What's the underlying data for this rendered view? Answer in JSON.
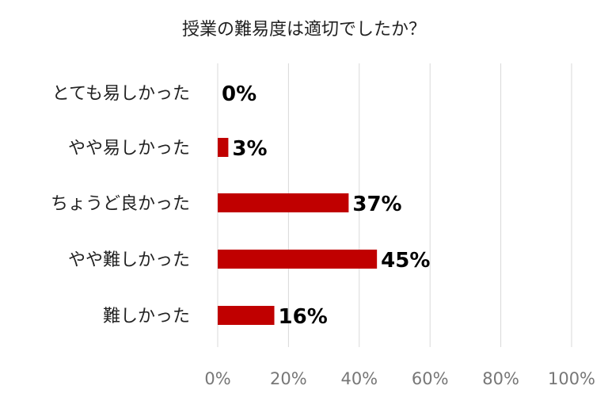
{
  "chart_data": {
    "type": "bar",
    "orientation": "horizontal",
    "title": "授業の難易度は適切でしたか？",
    "categories": [
      "とても易しかった",
      "やや易しかった",
      "ちょうど良かった",
      "やや難しかった",
      "難しかった"
    ],
    "values": [
      0,
      3,
      37,
      45,
      16
    ],
    "value_labels": [
      "0%",
      "3%",
      "37%",
      "45%",
      "16%"
    ],
    "xlim": [
      0,
      100
    ],
    "x_ticks": [
      "0%",
      "20%",
      "40%",
      "60%",
      "80%",
      "100%"
    ],
    "bar_color": "#c00000",
    "grid": true,
    "legend": "none"
  }
}
